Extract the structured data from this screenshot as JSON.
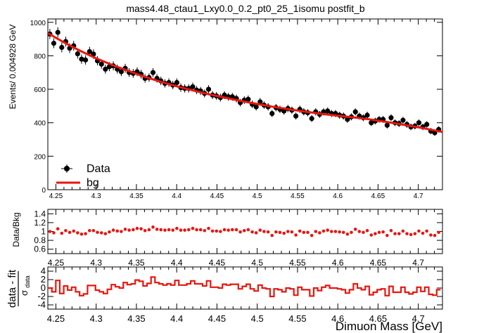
{
  "chart_data": [
    {
      "type": "scatter",
      "title": "mass4.48_ctau1_Lxy0.0_0.2_pt0_25_1isomu   postfit_b",
      "ylabel": "Events/ 0.004928 GeV",
      "xlim": [
        4.24,
        4.73
      ],
      "ylim": [
        0,
        1020
      ],
      "x_ticks": [
        "4.25",
        "4.3",
        "4.35",
        "4.4",
        "4.45",
        "4.5",
        "4.55",
        "4.6",
        "4.65",
        "4.7"
      ],
      "y_ticks": [
        "0",
        "200",
        "400",
        "600",
        "800",
        "1000"
      ],
      "legend": {
        "placement": "bottom-left",
        "entries": [
          "Data",
          "bg"
        ]
      },
      "series": [
        {
          "name": "Data",
          "x": [
            4.2425,
            4.2474,
            4.2524,
            4.2573,
            4.2622,
            4.2671,
            4.2721,
            4.277,
            4.2819,
            4.2868,
            4.2918,
            4.2967,
            4.3016,
            4.3066,
            4.3115,
            4.3164,
            4.3213,
            4.3263,
            4.3312,
            4.3361,
            4.341,
            4.346,
            4.3509,
            4.3558,
            4.3607,
            4.3657,
            4.3706,
            4.3755,
            4.3804,
            4.3854,
            4.3903,
            4.3952,
            4.4002,
            4.4051,
            4.41,
            4.4149,
            4.4199,
            4.4248,
            4.4297,
            4.4346,
            4.4396,
            4.4445,
            4.4494,
            4.4543,
            4.4593,
            4.4642,
            4.4691,
            4.4741,
            4.479,
            4.4839,
            4.4888,
            4.4938,
            4.4987,
            4.5036,
            4.5085,
            4.5135,
            4.5184,
            4.5233,
            4.5282,
            4.5332,
            4.5381,
            4.543,
            4.548,
            4.5529,
            4.5578,
            4.5627,
            4.5677,
            4.5726,
            4.5775,
            4.5824,
            4.5874,
            4.5923,
            4.5972,
            4.6022,
            4.6071,
            4.612,
            4.6169,
            4.6219,
            4.6268,
            4.6317,
            4.6366,
            4.6416,
            4.6465,
            4.6514,
            4.6563,
            4.6613,
            4.6662,
            4.6711,
            4.6761,
            4.681,
            4.6859,
            4.6908,
            4.6958,
            4.7007,
            4.7056,
            4.7105,
            4.7155,
            4.7204,
            4.7253
          ],
          "y": [
            930,
            875,
            940,
            850,
            885,
            845,
            860,
            812,
            780,
            775,
            825,
            810,
            770,
            750,
            720,
            735,
            740,
            720,
            705,
            725,
            700,
            695,
            705,
            690,
            665,
            670,
            700,
            665,
            650,
            635,
            640,
            625,
            640,
            610,
            605,
            605,
            615,
            595,
            590,
            575,
            600,
            565,
            560,
            550,
            565,
            555,
            555,
            545,
            520,
            535,
            540,
            510,
            495,
            525,
            505,
            495,
            455,
            490,
            480,
            470,
            485,
            475,
            440,
            480,
            465,
            460,
            425,
            465,
            450,
            465,
            470,
            455,
            455,
            445,
            440,
            420,
            435,
            465,
            440,
            430,
            445,
            400,
            410,
            420,
            420,
            385,
            430,
            400,
            395,
            415,
            390,
            375,
            380,
            400,
            375,
            390,
            350,
            340,
            360
          ]
        },
        {
          "name": "bg",
          "x": [
            4.24,
            4.26,
            4.28,
            4.3,
            4.32,
            4.34,
            4.36,
            4.38,
            4.4,
            4.42,
            4.44,
            4.46,
            4.48,
            4.5,
            4.52,
            4.54,
            4.56,
            4.58,
            4.6,
            4.62,
            4.64,
            4.66,
            4.68,
            4.7,
            4.73
          ],
          "y": [
            935,
            880,
            830,
            785,
            745,
            710,
            675,
            645,
            618,
            593,
            570,
            550,
            530,
            512,
            495,
            480,
            466,
            453,
            442,
            432,
            420,
            405,
            389,
            373,
            345
          ]
        }
      ]
    },
    {
      "type": "scatter",
      "ylabel": "Data/Bkg",
      "xlim": [
        4.24,
        4.73
      ],
      "ylim": [
        0.5,
        1.5
      ],
      "x_ticks": [
        "4.25",
        "4.3",
        "4.35",
        "4.4",
        "4.45",
        "4.5",
        "4.55",
        "4.6",
        "4.65",
        "4.7"
      ],
      "y_ticks": [
        "0.6",
        "0.8",
        "1",
        "1.2",
        "1.4"
      ],
      "values": [
        1.0,
        0.97,
        1.06,
        0.96,
        1.02,
        0.98,
        1.01,
        0.97,
        0.94,
        0.95,
        1.02,
        1.02,
        0.98,
        0.97,
        0.95,
        0.99,
        1.03,
        1.01,
        1.0,
        1.05,
        1.03,
        1.04,
        1.07,
        1.06,
        1.02,
        1.04,
        1.1,
        1.05,
        1.04,
        1.03,
        1.04,
        1.03,
        1.07,
        1.03,
        1.03,
        1.04,
        1.07,
        1.04,
        1.04,
        1.02,
        1.07,
        1.01,
        1.01,
        1.0,
        1.04,
        1.03,
        1.04,
        1.04,
        0.99,
        1.02,
        1.04,
        0.99,
        0.97,
        1.03,
        1.0,
        0.99,
        0.91,
        0.99,
        0.98,
        0.96,
        1.0,
        0.99,
        0.92,
        1.01,
        0.98,
        0.98,
        0.91,
        1.0,
        0.97,
        1.01,
        1.03,
        1.0,
        1.0,
        0.99,
        0.98,
        0.94,
        0.98,
        1.05,
        1.0,
        0.98,
        1.02,
        0.92,
        0.95,
        0.98,
        0.99,
        0.91,
        1.02,
        0.95,
        0.95,
        1.01,
        0.95,
        0.93,
        0.95,
        1.01,
        0.96,
        1.01,
        0.92,
        0.91,
        0.98
      ]
    },
    {
      "type": "bar",
      "ylabel_main": "data - fit",
      "ylabel_sub": "σ",
      "ylabel_subscript": "data",
      "xlabel": "Dimuon Mass [GeV]",
      "xlim": [
        4.24,
        4.73
      ],
      "ylim": [
        -5,
        5
      ],
      "x_ticks": [
        "4.25",
        "4.3",
        "4.35",
        "4.4",
        "4.45",
        "4.5",
        "4.55",
        "4.6",
        "4.65",
        "4.7"
      ],
      "y_ticks": [
        "-4",
        "-2",
        "0",
        "2",
        "4"
      ],
      "values": [
        0.0,
        -0.9,
        1.8,
        -1.3,
        0.5,
        -0.5,
        0.2,
        -0.9,
        -1.8,
        -1.4,
        0.6,
        0.6,
        -0.5,
        -0.9,
        -1.3,
        -0.3,
        0.8,
        0.3,
        0.0,
        1.3,
        0.8,
        1.0,
        1.9,
        1.6,
        0.5,
        1.1,
        2.6,
        1.3,
        1.0,
        0.7,
        1.0,
        0.7,
        1.8,
        0.7,
        0.7,
        1.0,
        1.7,
        1.0,
        1.0,
        0.5,
        1.7,
        0.2,
        0.2,
        0.0,
        0.9,
        0.7,
        0.9,
        0.9,
        -0.2,
        0.4,
        0.9,
        -0.2,
        -0.7,
        0.7,
        0.0,
        -0.2,
        -2.0,
        -0.2,
        -0.4,
        -0.9,
        0.0,
        -0.2,
        -1.7,
        0.2,
        -0.4,
        -0.4,
        -1.9,
        0.0,
        -0.6,
        0.2,
        0.6,
        0.0,
        0.0,
        -0.2,
        -0.4,
        -1.2,
        -0.4,
        1.0,
        0.0,
        -0.4,
        0.4,
        -1.6,
        -1.0,
        -0.4,
        -0.2,
        -1.8,
        0.4,
        -1.0,
        -1.0,
        0.2,
        -1.0,
        -1.4,
        -1.0,
        0.2,
        -0.8,
        0.2,
        -1.5,
        -1.7,
        -0.4
      ]
    }
  ]
}
